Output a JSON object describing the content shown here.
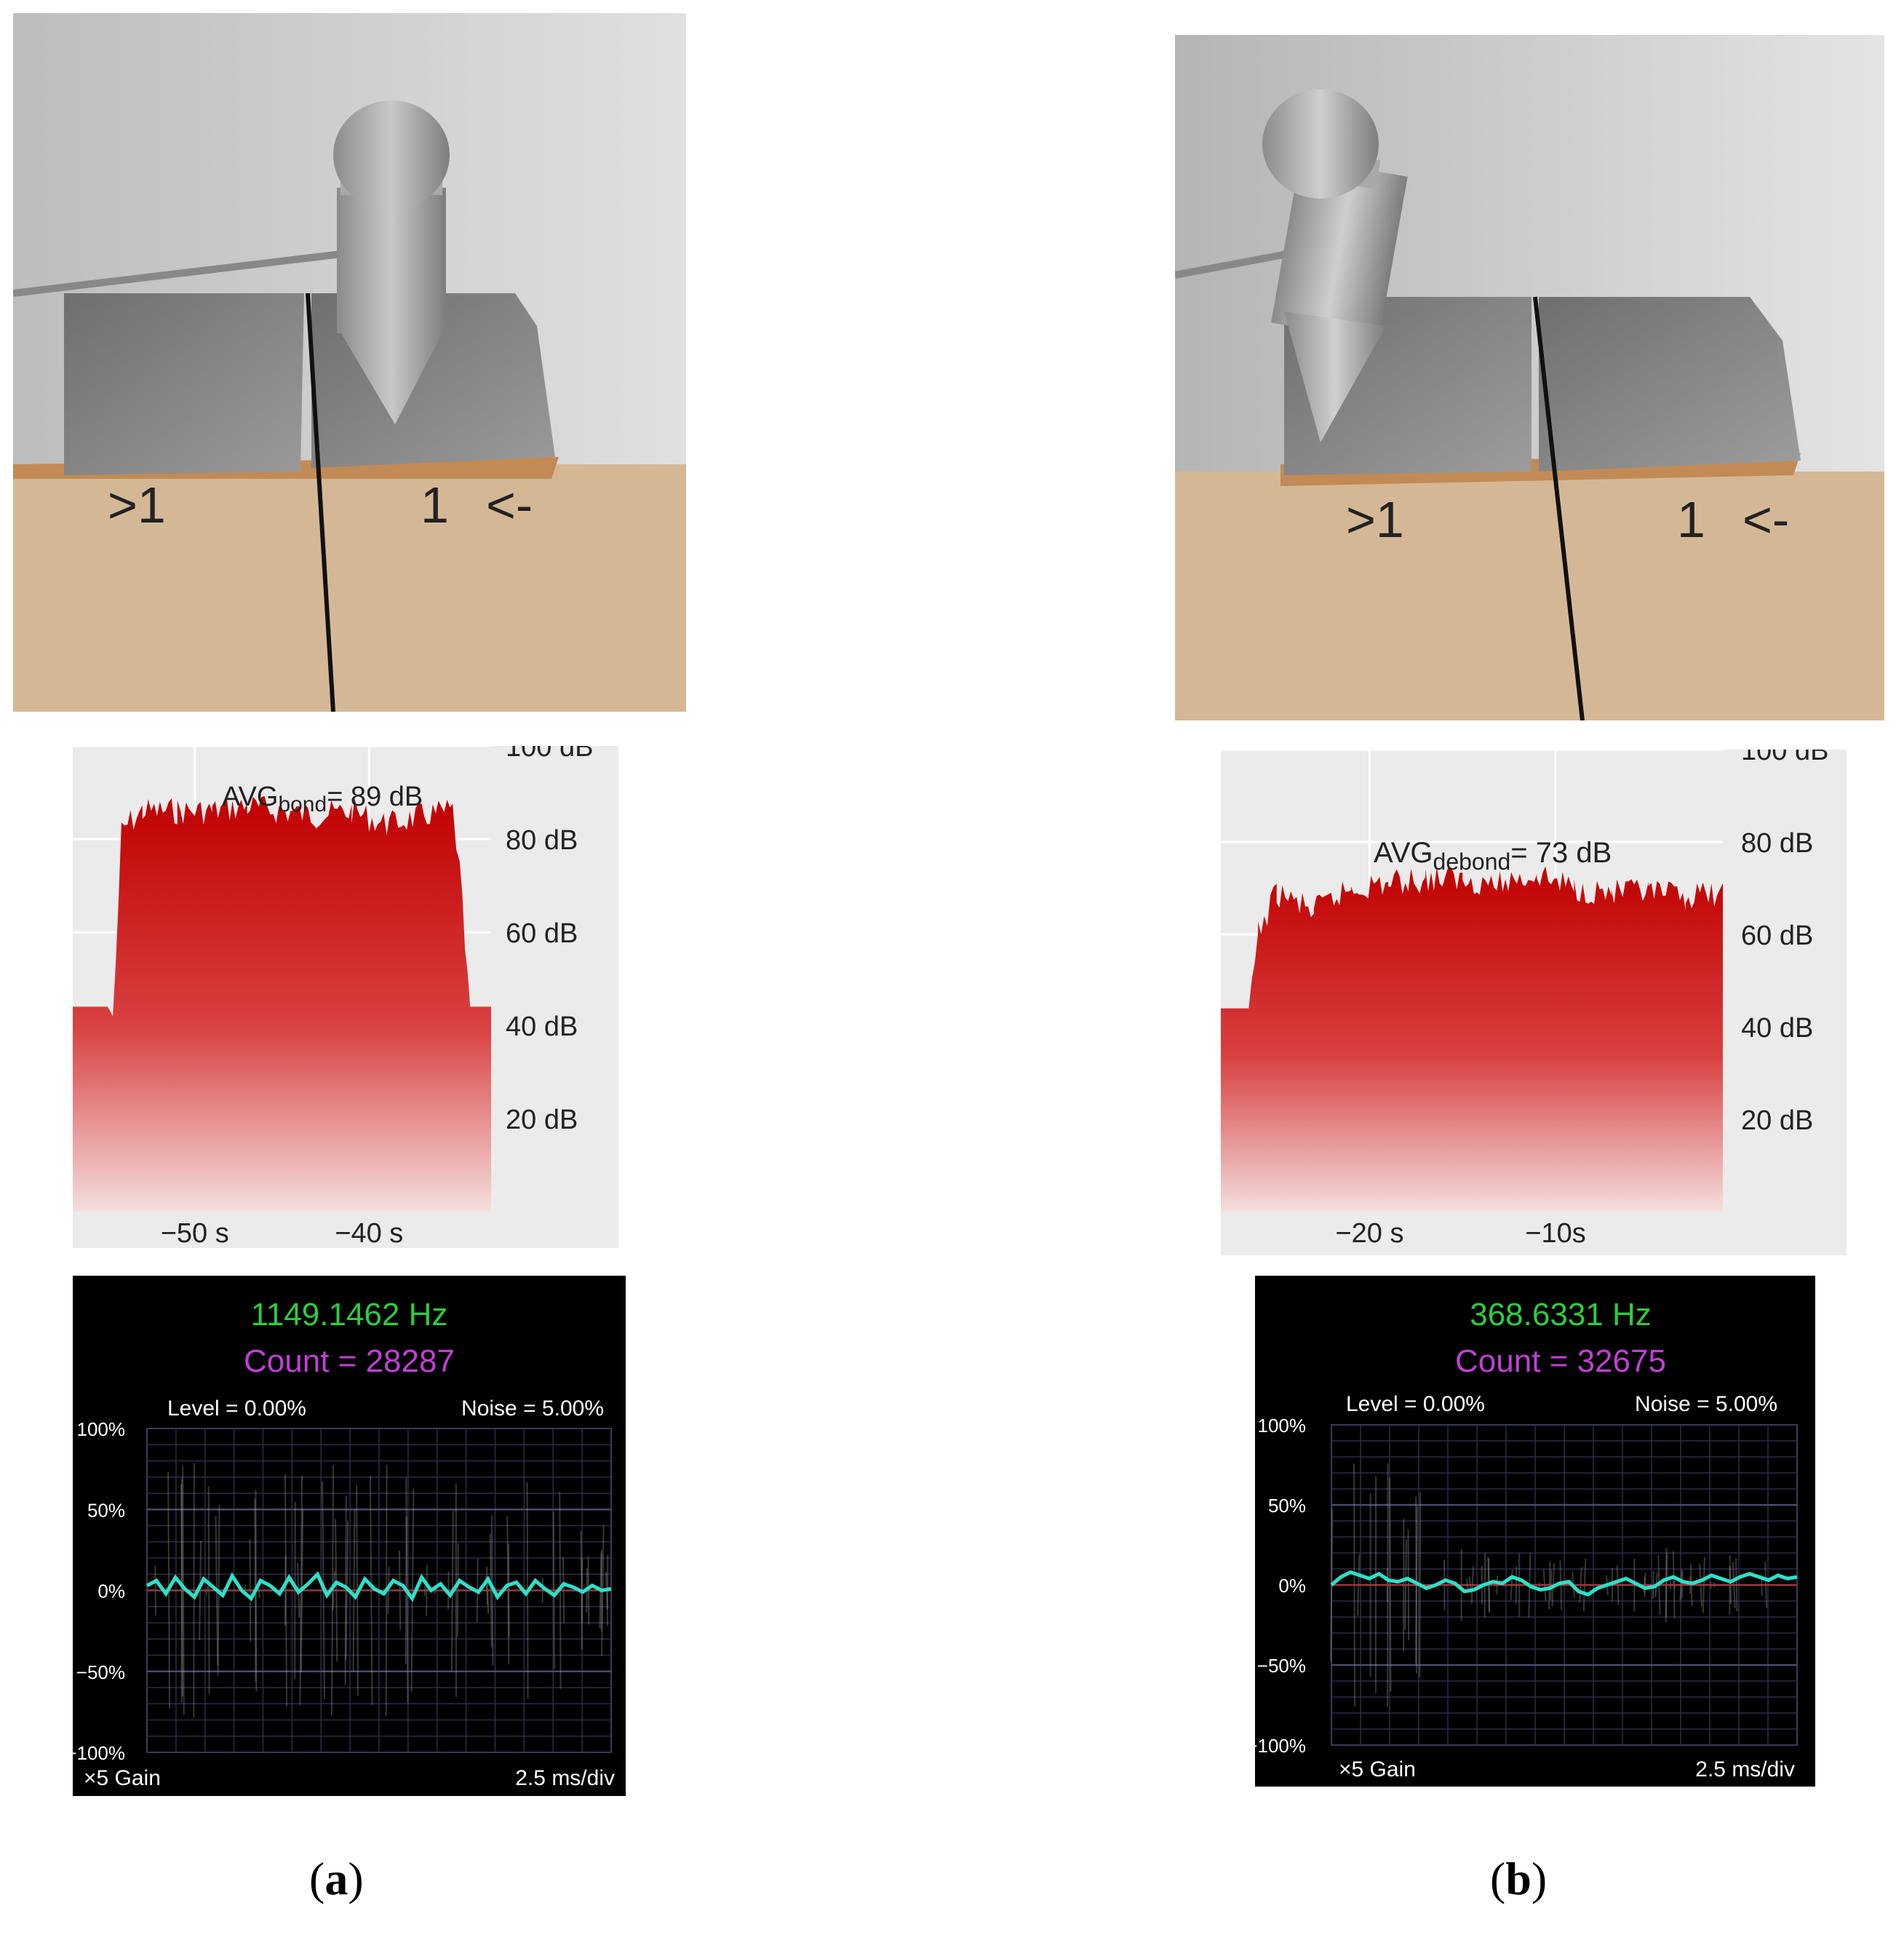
{
  "panels": [
    {
      "id": "a",
      "label_letter": "a",
      "level_chart": {
        "avg_prefix": "AVG",
        "avg_sub": "bond",
        "avg_suffix": "= 89 dB",
        "y_ticks": [
          "100 dB",
          "80 dB",
          "60 dB",
          "40 dB",
          "20 dB"
        ],
        "x_ticks": [
          "−50 s",
          "−40 s"
        ]
      },
      "scope": {
        "frequency": "1149.1462 Hz",
        "count": "Count = 28287",
        "level": "Level = 0.00%",
        "noise": "Noise = 5.00%",
        "y_ticks": [
          "100%",
          "50%",
          "0%",
          "−50%",
          "−100%"
        ],
        "gain": "×5 Gain",
        "timebase": "2.5 ms/div"
      }
    },
    {
      "id": "b",
      "label_letter": "b",
      "level_chart": {
        "avg_prefix": "AVG",
        "avg_sub": "debond",
        "avg_suffix": "= 73 dB",
        "y_ticks": [
          "100 dB",
          "80 dB",
          "60 dB",
          "40 dB",
          "20 dB"
        ],
        "x_ticks": [
          "−20 s",
          "−10s"
        ]
      },
      "scope": {
        "frequency": "368.6331 Hz",
        "count": "Count = 32675",
        "level": "Level = 0.00%",
        "noise": "Noise = 5.00%",
        "y_ticks": [
          "100%",
          "50%",
          "0%",
          "−50%",
          "−100%"
        ],
        "gain": "×5 Gain",
        "timebase": "2.5 ms/div"
      }
    }
  ],
  "chart_data": [
    {
      "type": "area",
      "panel": "a",
      "title": "AVG bond = 89 dB",
      "xlabel": "",
      "ylabel": "",
      "x_ticks": [
        "−50 s",
        "−40 s"
      ],
      "y_ticks": [
        "20 dB",
        "40 dB",
        "60 dB",
        "80 dB",
        "100 dB"
      ],
      "ylim": [
        0,
        100
      ],
      "xlim": [
        -57,
        -33
      ],
      "x": [
        -57,
        -55,
        -54.7,
        -54.2,
        -53,
        -51,
        -49,
        -47,
        -45,
        -43,
        -41,
        -39,
        -37,
        -35.2,
        -34.8,
        -34.2,
        -33
      ],
      "values": [
        44,
        44,
        42,
        85,
        89,
        89,
        89,
        90,
        89,
        88,
        89,
        86,
        88,
        89,
        76,
        44,
        44
      ],
      "avg_db": 89
    },
    {
      "type": "area",
      "panel": "b",
      "title": "AVG debond = 73 dB",
      "xlabel": "",
      "ylabel": "",
      "x_ticks": [
        "−20 s",
        "−10s"
      ],
      "y_ticks": [
        "20 dB",
        "40 dB",
        "60 dB",
        "80 dB",
        "100 dB"
      ],
      "ylim": [
        0,
        100
      ],
      "xlim": [
        -28,
        -1
      ],
      "x": [
        -28,
        -26.5,
        -26,
        -25,
        -23,
        -21,
        -19,
        -17,
        -15,
        -13,
        -11,
        -9,
        -7,
        -5,
        -3,
        -1
      ],
      "values": [
        44,
        44,
        63,
        72,
        68,
        73,
        74,
        75,
        75,
        74,
        76,
        73,
        72,
        72,
        71,
        72
      ],
      "avg_db": 73
    },
    {
      "type": "line",
      "panel": "a",
      "title": "1149.1462 Hz",
      "ylim": [
        -100,
        100
      ],
      "y_ticks": [
        "100%",
        "50%",
        "0%",
        "−50%",
        "−100%"
      ],
      "series": [
        {
          "values": [
            3,
            6,
            -2,
            8,
            1,
            -4,
            7,
            2,
            -3,
            9,
            0,
            -5,
            6,
            3,
            -2,
            8,
            -1,
            4,
            10,
            -3,
            5,
            2,
            -4,
            7,
            1,
            -2,
            6,
            3,
            -5,
            8,
            0,
            4,
            -3,
            6,
            2,
            -1,
            7,
            -4,
            3,
            5,
            -2,
            6,
            1,
            -3,
            4,
            2,
            -1,
            3,
            0,
            1
          ]
        }
      ]
    },
    {
      "type": "line",
      "panel": "b",
      "title": "368.6331 Hz",
      "ylim": [
        -100,
        100
      ],
      "y_ticks": [
        "100%",
        "50%",
        "0%",
        "−50%",
        "−100%"
      ],
      "series": [
        {
          "values": [
            0,
            5,
            8,
            6,
            4,
            7,
            3,
            2,
            4,
            1,
            -2,
            0,
            3,
            1,
            -4,
            -3,
            0,
            2,
            1,
            5,
            3,
            -1,
            -3,
            -2,
            1,
            2,
            -4,
            -6,
            -2,
            0,
            2,
            4,
            1,
            -2,
            -1,
            3,
            5,
            2,
            1,
            3,
            6,
            4,
            2,
            5,
            7,
            5,
            3,
            6,
            4,
            5
          ]
        }
      ]
    }
  ]
}
